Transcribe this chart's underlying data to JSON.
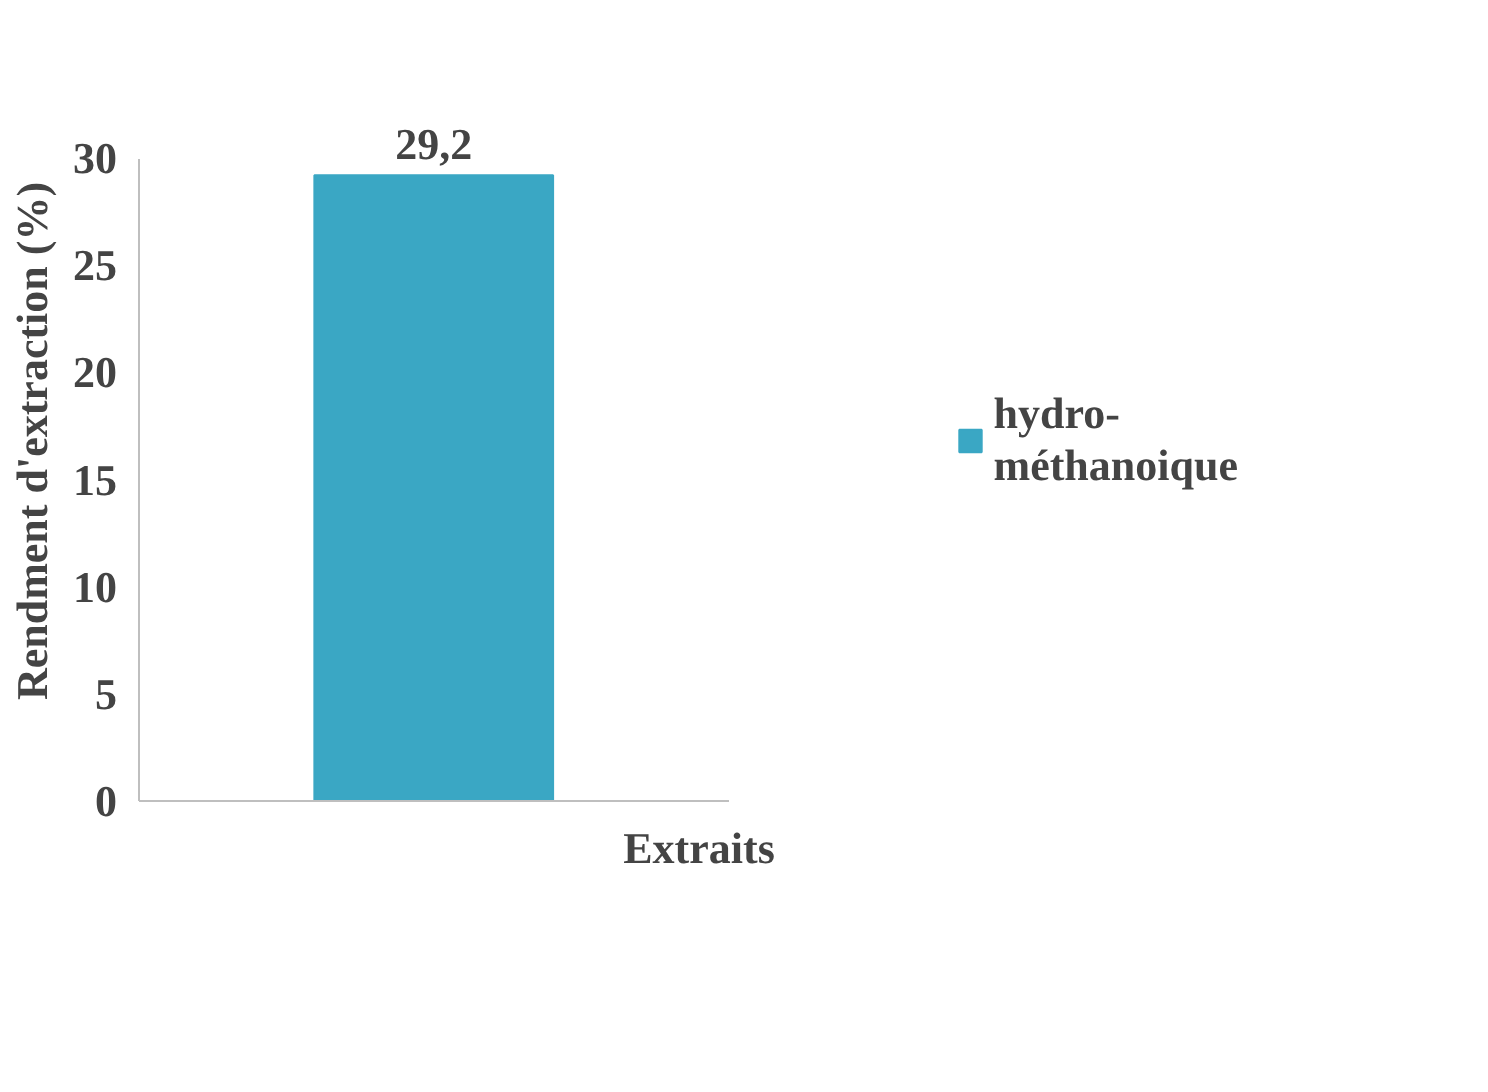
{
  "chart_data": {
    "type": "bar",
    "xlabel": "Extraits",
    "ylabel": "Rendment d'extraction (%)",
    "categories": [
      null
    ],
    "series": [
      {
        "name": "hydro-\nméthanoique",
        "color": "#3aa7c4",
        "values": [
          29.2
        ],
        "value_labels": [
          "29,2"
        ]
      }
    ],
    "ylim": [
      0,
      30
    ],
    "yticks": [
      0,
      5,
      10,
      15,
      20,
      25,
      30
    ],
    "grid": false,
    "legend": "right",
    "tick_labels": "y"
  }
}
